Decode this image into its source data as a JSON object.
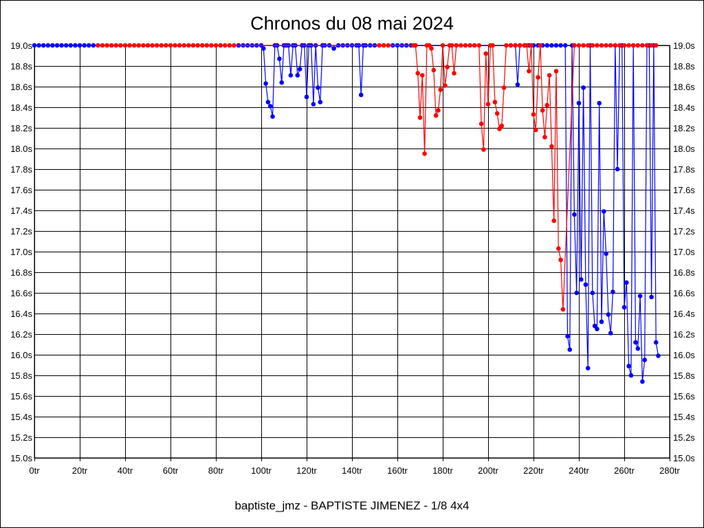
{
  "chart_data": {
    "type": "line",
    "title": "Chronos du 08 mai 2024",
    "subtitle": "baptiste_jmz - BAPTISTE JIMENEZ - 1/8 4x4",
    "xlim": [
      0,
      280
    ],
    "ylim": [
      15.0,
      19.0
    ],
    "grid": true,
    "x_ticks": [
      0,
      20,
      40,
      60,
      80,
      100,
      120,
      140,
      160,
      180,
      200,
      220,
      240,
      260,
      280
    ],
    "x_tick_labels": [
      "0tr",
      "20tr",
      "40tr",
      "60tr",
      "80tr",
      "100tr",
      "120tr",
      "140tr",
      "160tr",
      "180tr",
      "200tr",
      "220tr",
      "240tr",
      "260tr",
      "280tr"
    ],
    "y_ticks": [
      19.0,
      18.8,
      18.6,
      18.4,
      18.2,
      18.0,
      17.8,
      17.6,
      17.4,
      17.2,
      17.0,
      16.8,
      16.6,
      16.4,
      16.2,
      16.0,
      15.8,
      15.6,
      15.4,
      15.2,
      15.0
    ],
    "y_tick_labels": [
      "19.0s",
      "18.8s",
      "18.6s",
      "18.4s",
      "18.2s",
      "18.0s",
      "17.8s",
      "17.6s",
      "17.4s",
      "17.2s",
      "17.0s",
      "16.8s",
      "16.6s",
      "16.4s",
      "16.2s",
      "16.0s",
      "15.8s",
      "15.6s",
      "15.4s",
      "15.2s",
      "15.0s"
    ],
    "series": [
      {
        "color": "#0000ff",
        "points": [
          [
            0,
            19.0
          ],
          [
            2,
            19.0
          ],
          [
            4,
            19.0
          ],
          [
            6,
            19.0
          ],
          [
            8,
            19.0
          ],
          [
            10,
            19.0
          ],
          [
            12,
            19.0
          ],
          [
            14,
            19.0
          ],
          [
            16,
            19.0
          ],
          [
            18,
            19.0
          ],
          [
            20,
            19.0
          ],
          [
            22,
            19.0
          ],
          [
            24,
            19.0
          ],
          [
            26,
            19.0
          ],
          [
            90,
            19.0
          ],
          [
            92,
            19.0
          ],
          [
            94,
            19.0
          ],
          [
            96,
            19.0
          ],
          [
            98,
            19.0
          ],
          [
            100,
            19.0
          ],
          [
            101,
            18.97
          ],
          [
            102,
            18.63
          ],
          [
            103,
            18.45
          ],
          [
            104,
            18.41
          ],
          [
            105,
            18.31
          ],
          [
            106,
            19.0
          ],
          [
            107,
            19.0
          ],
          [
            108,
            18.87
          ],
          [
            109,
            18.64
          ],
          [
            110,
            19.0
          ],
          [
            111,
            19.0
          ],
          [
            112,
            19.0
          ],
          [
            113,
            18.71
          ],
          [
            114,
            19.0
          ],
          [
            115,
            19.0
          ],
          [
            116,
            18.71
          ],
          [
            117,
            18.77
          ],
          [
            118,
            19.0
          ],
          [
            119,
            19.0
          ],
          [
            120,
            18.5
          ],
          [
            121,
            19.0
          ],
          [
            122,
            19.0
          ],
          [
            123,
            18.43
          ],
          [
            124,
            19.0
          ],
          [
            125,
            18.59
          ],
          [
            126,
            18.45
          ],
          [
            127,
            19.0
          ],
          [
            128,
            19.0
          ],
          [
            130,
            19.0
          ],
          [
            132,
            18.97
          ],
          [
            134,
            19.0
          ],
          [
            136,
            19.0
          ],
          [
            138,
            19.0
          ],
          [
            140,
            19.0
          ],
          [
            142,
            19.0
          ],
          [
            143,
            19.0
          ],
          [
            144,
            18.52
          ],
          [
            145,
            19.0
          ],
          [
            146,
            19.0
          ],
          [
            148,
            19.0
          ],
          [
            150,
            19.0
          ],
          [
            158,
            19.0
          ],
          [
            160,
            19.0
          ],
          [
            162,
            19.0
          ],
          [
            164,
            19.0
          ],
          [
            166,
            19.0
          ],
          [
            210,
            19.0
          ],
          [
            212,
            19.0
          ],
          [
            213,
            18.62
          ],
          [
            214,
            19.0
          ],
          [
            216,
            19.0
          ],
          [
            218,
            19.0
          ],
          [
            220,
            19.0
          ],
          [
            222,
            19.0
          ],
          [
            224,
            19.0
          ],
          [
            226,
            19.0
          ],
          [
            228,
            19.0
          ],
          [
            230,
            19.0
          ],
          [
            232,
            19.0
          ],
          [
            234,
            19.0
          ],
          [
            235,
            16.18
          ],
          [
            236,
            16.05
          ],
          [
            237,
            19.0
          ],
          [
            238,
            17.36
          ],
          [
            239,
            16.6
          ],
          [
            240,
            18.44
          ],
          [
            241,
            16.73
          ],
          [
            242,
            18.59
          ],
          [
            243,
            16.68
          ],
          [
            244,
            15.87
          ],
          [
            245,
            19.0
          ],
          [
            246,
            16.6
          ],
          [
            247,
            16.28
          ],
          [
            248,
            16.25
          ],
          [
            249,
            18.44
          ],
          [
            250,
            16.32
          ],
          [
            251,
            17.39
          ],
          [
            252,
            16.98
          ],
          [
            253,
            16.39
          ],
          [
            254,
            16.21
          ],
          [
            255,
            16.61
          ],
          [
            256,
            19.0
          ],
          [
            257,
            17.8
          ],
          [
            258,
            19.0
          ],
          [
            259,
            19.0
          ],
          [
            260,
            16.46
          ],
          [
            261,
            16.7
          ],
          [
            262,
            15.89
          ],
          [
            263,
            15.8
          ],
          [
            264,
            19.0
          ],
          [
            265,
            16.12
          ],
          [
            266,
            16.06
          ],
          [
            267,
            16.57
          ],
          [
            268,
            15.74
          ],
          [
            269,
            15.95
          ],
          [
            270,
            19.0
          ],
          [
            271,
            19.0
          ],
          [
            272,
            16.56
          ],
          [
            273,
            19.0
          ],
          [
            274,
            16.12
          ],
          [
            275,
            15.99
          ]
        ]
      },
      {
        "color": "#ff0000",
        "points": [
          [
            28,
            19.0
          ],
          [
            30,
            19.0
          ],
          [
            32,
            19.0
          ],
          [
            34,
            19.0
          ],
          [
            36,
            19.0
          ],
          [
            38,
            19.0
          ],
          [
            40,
            19.0
          ],
          [
            42,
            19.0
          ],
          [
            44,
            19.0
          ],
          [
            46,
            19.0
          ],
          [
            48,
            19.0
          ],
          [
            50,
            19.0
          ],
          [
            52,
            19.0
          ],
          [
            54,
            19.0
          ],
          [
            56,
            19.0
          ],
          [
            58,
            19.0
          ],
          [
            60,
            19.0
          ],
          [
            62,
            19.0
          ],
          [
            64,
            19.0
          ],
          [
            66,
            19.0
          ],
          [
            68,
            19.0
          ],
          [
            70,
            19.0
          ],
          [
            72,
            19.0
          ],
          [
            74,
            19.0
          ],
          [
            76,
            19.0
          ],
          [
            78,
            19.0
          ],
          [
            80,
            19.0
          ],
          [
            82,
            19.0
          ],
          [
            84,
            19.0
          ],
          [
            86,
            19.0
          ],
          [
            88,
            19.0
          ],
          [
            152,
            19.0
          ],
          [
            154,
            19.0
          ],
          [
            156,
            19.0
          ],
          [
            167,
            19.0
          ],
          [
            168,
            19.0
          ],
          [
            169,
            18.73
          ],
          [
            170,
            18.3
          ],
          [
            171,
            18.71
          ],
          [
            172,
            17.95
          ],
          [
            173,
            19.0
          ],
          [
            174,
            19.0
          ],
          [
            175,
            18.97
          ],
          [
            176,
            18.76
          ],
          [
            177,
            18.32
          ],
          [
            178,
            18.37
          ],
          [
            179,
            18.57
          ],
          [
            180,
            19.0
          ],
          [
            181,
            18.61
          ],
          [
            182,
            18.79
          ],
          [
            183,
            19.0
          ],
          [
            184,
            19.0
          ],
          [
            185,
            18.73
          ],
          [
            186,
            19.0
          ],
          [
            188,
            19.0
          ],
          [
            190,
            19.0
          ],
          [
            192,
            19.0
          ],
          [
            194,
            19.0
          ],
          [
            196,
            19.0
          ],
          [
            197,
            18.24
          ],
          [
            198,
            17.99
          ],
          [
            199,
            18.92
          ],
          [
            200,
            18.43
          ],
          [
            201,
            19.0
          ],
          [
            202,
            19.0
          ],
          [
            203,
            18.45
          ],
          [
            204,
            18.34
          ],
          [
            205,
            18.19
          ],
          [
            206,
            18.22
          ],
          [
            207,
            18.59
          ],
          [
            208,
            19.0
          ],
          [
            210,
            19.0
          ],
          [
            212,
            19.0
          ],
          [
            214,
            19.0
          ],
          [
            216,
            19.0
          ],
          [
            217,
            19.0
          ],
          [
            218,
            18.75
          ],
          [
            219,
            19.0
          ],
          [
            220,
            18.33
          ],
          [
            221,
            18.18
          ],
          [
            222,
            18.69
          ],
          [
            223,
            19.0
          ],
          [
            224,
            18.37
          ],
          [
            225,
            18.11
          ],
          [
            226,
            18.42
          ],
          [
            227,
            18.71
          ],
          [
            228,
            18.02
          ],
          [
            229,
            17.3
          ],
          [
            230,
            18.75
          ],
          [
            231,
            17.03
          ],
          [
            232,
            16.92
          ],
          [
            233,
            16.44
          ],
          [
            238,
            19.0
          ],
          [
            240,
            19.0
          ],
          [
            242,
            19.0
          ],
          [
            244,
            19.0
          ],
          [
            246,
            19.0
          ],
          [
            248,
            19.0
          ],
          [
            250,
            19.0
          ],
          [
            252,
            19.0
          ],
          [
            254,
            19.0
          ],
          [
            256,
            19.0
          ],
          [
            258,
            19.0
          ],
          [
            260,
            19.0
          ],
          [
            262,
            19.0
          ],
          [
            264,
            19.0
          ],
          [
            266,
            19.0
          ],
          [
            268,
            19.0
          ],
          [
            270,
            19.0
          ],
          [
            272,
            19.0
          ],
          [
            274,
            19.0
          ]
        ]
      }
    ]
  }
}
